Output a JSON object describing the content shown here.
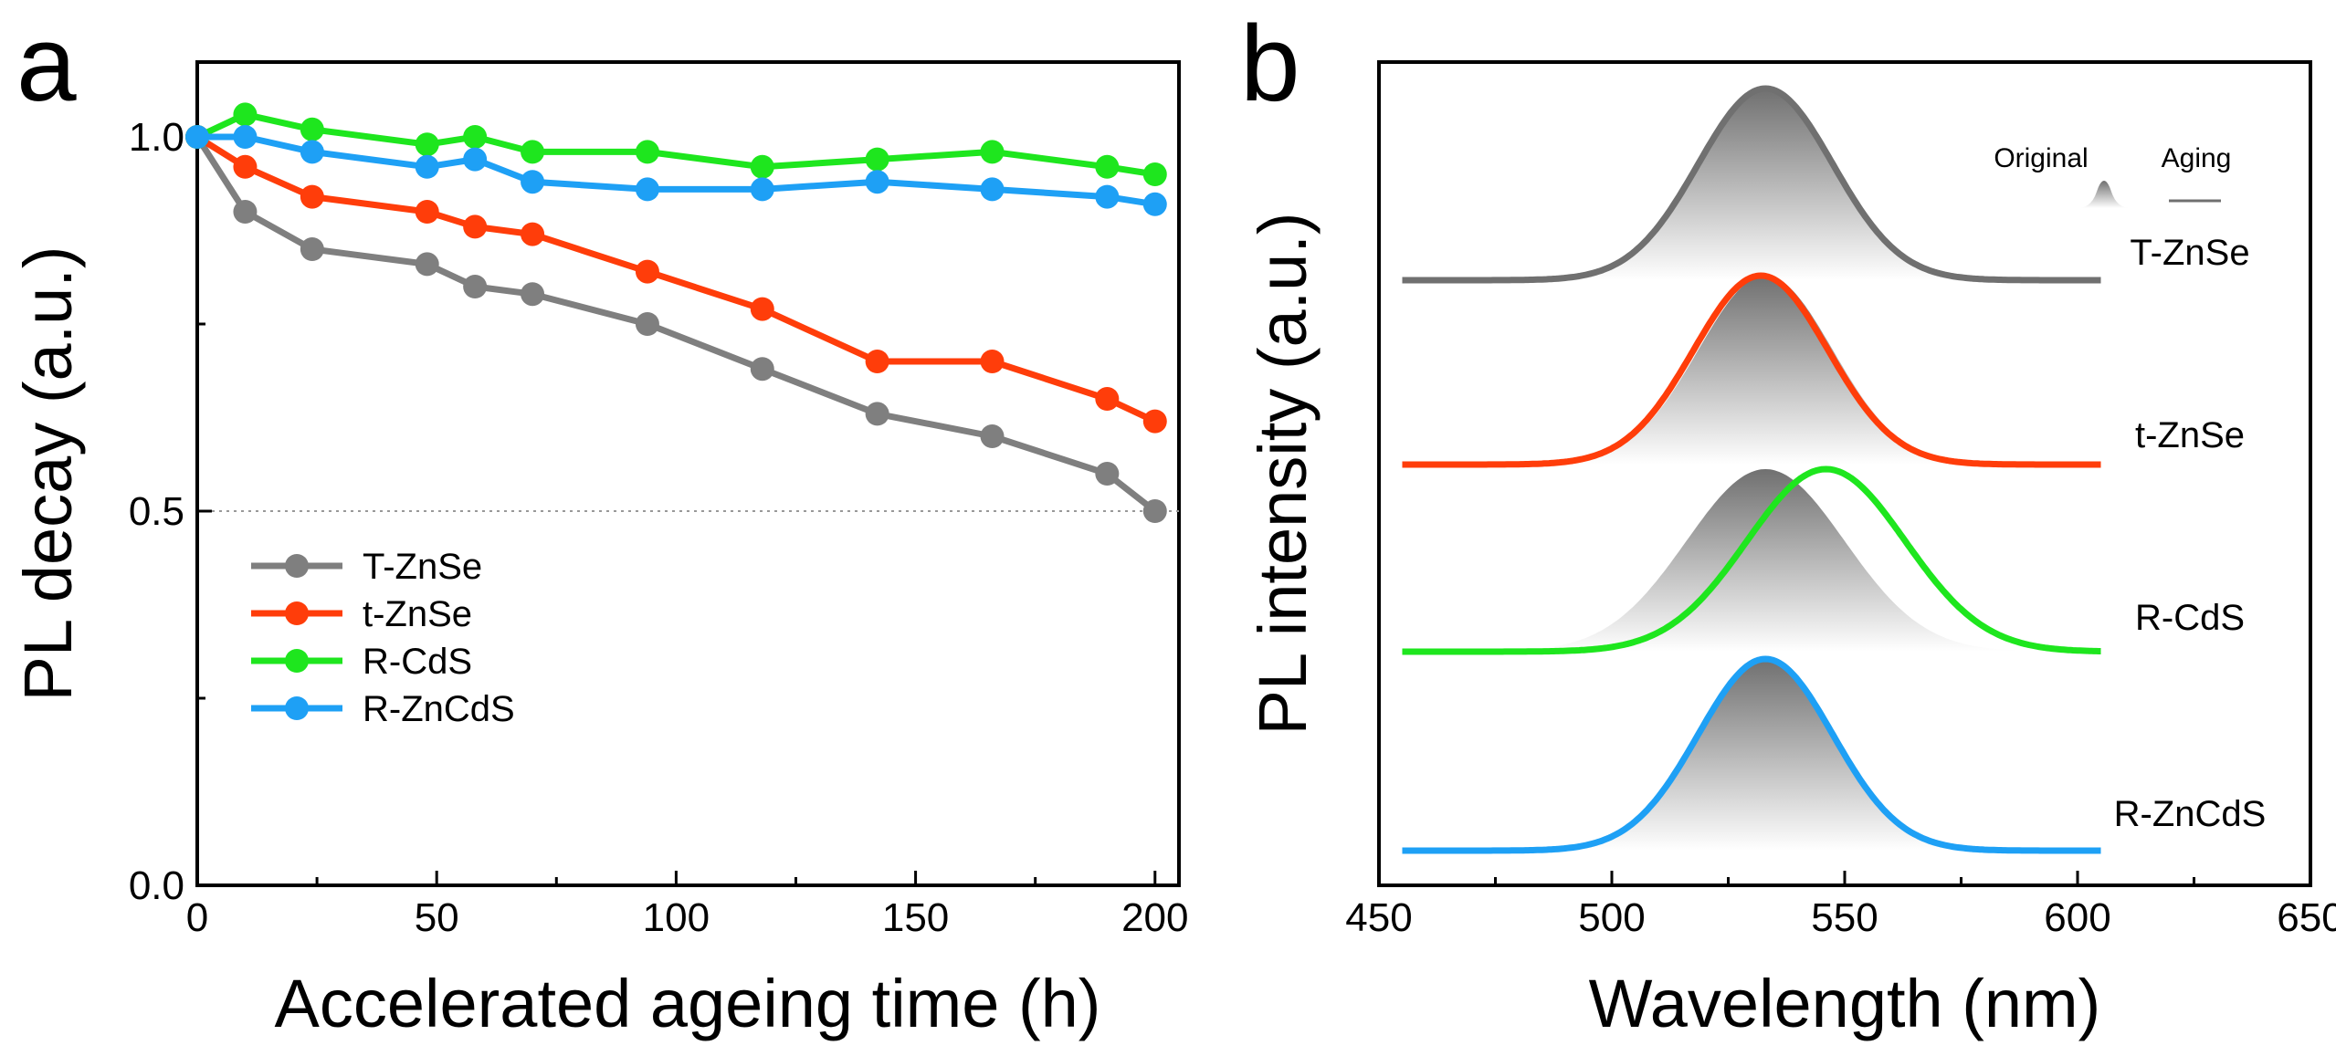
{
  "chart_data": [
    {
      "panel": "a",
      "type": "line",
      "xlabel": "Accelerated ageing time (h)",
      "ylabel": "PL decay (a.u.)",
      "xlim": [
        0,
        205
      ],
      "ylim": [
        0.0,
        1.1
      ],
      "xticks": [
        0,
        50,
        100,
        150,
        200
      ],
      "xtick_labels": [
        "0",
        "50",
        "100",
        "150",
        "200"
      ],
      "yticks": [
        0.0,
        0.5,
        1.0
      ],
      "ytick_labels": [
        "0.0",
        "0.5",
        "1.0"
      ],
      "reference_line": 0.5,
      "legend_position": "bottom-left",
      "series": [
        {
          "name": "T-ZnSe",
          "color": "#7f7f7f",
          "x": [
            0,
            10,
            24,
            48,
            58,
            70,
            94,
            118,
            142,
            166,
            190,
            200
          ],
          "y": [
            1.0,
            0.9,
            0.85,
            0.83,
            0.8,
            0.79,
            0.75,
            0.69,
            0.63,
            0.6,
            0.55,
            0.5
          ]
        },
        {
          "name": "t-ZnSe",
          "color": "#ff3d0a",
          "x": [
            0,
            10,
            24,
            48,
            58,
            70,
            94,
            118,
            142,
            166,
            190,
            200
          ],
          "y": [
            1.0,
            0.96,
            0.92,
            0.9,
            0.88,
            0.87,
            0.82,
            0.77,
            0.7,
            0.7,
            0.65,
            0.62
          ]
        },
        {
          "name": "R-CdS",
          "color": "#1ee61e",
          "x": [
            0,
            10,
            24,
            48,
            58,
            70,
            94,
            118,
            142,
            166,
            190,
            200
          ],
          "y": [
            1.0,
            1.03,
            1.01,
            0.99,
            1.0,
            0.98,
            0.98,
            0.96,
            0.97,
            0.98,
            0.96,
            0.95
          ]
        },
        {
          "name": "R-ZnCdS",
          "color": "#1ea0f5",
          "x": [
            0,
            10,
            24,
            48,
            58,
            70,
            94,
            118,
            142,
            166,
            190,
            200
          ],
          "y": [
            1.0,
            1.0,
            0.98,
            0.96,
            0.97,
            0.94,
            0.93,
            0.93,
            0.94,
            0.93,
            0.92,
            0.91
          ]
        }
      ]
    },
    {
      "panel": "b",
      "type": "line",
      "xlabel": "Wavelength (nm)",
      "ylabel": "PL intensity (a.u.)",
      "xlim": [
        450,
        650
      ],
      "xticks": [
        450,
        500,
        550,
        600,
        650
      ],
      "xtick_labels": [
        "450",
        "500",
        "550",
        "600",
        "650"
      ],
      "x_range_of_spectra": [
        455,
        605
      ],
      "legend_key": {
        "original": "Original",
        "aging": "Aging"
      },
      "series": [
        {
          "name": "T-ZnSe",
          "color": "#707070",
          "original_peak_nm": 533,
          "aging_peak_nm": 533,
          "fwhm_nm": 34
        },
        {
          "name": "t-ZnSe",
          "color": "#ff3d0a",
          "original_peak_nm": 533,
          "aging_peak_nm": 532,
          "fwhm_nm": 34
        },
        {
          "name": "R-CdS",
          "color": "#1ee61e",
          "original_peak_nm": 533,
          "aging_peak_nm": 546,
          "fwhm_nm": 40
        },
        {
          "name": "R-ZnCdS",
          "color": "#1ea0f5",
          "original_peak_nm": 533,
          "aging_peak_nm": 533,
          "fwhm_nm": 34
        }
      ]
    }
  ]
}
